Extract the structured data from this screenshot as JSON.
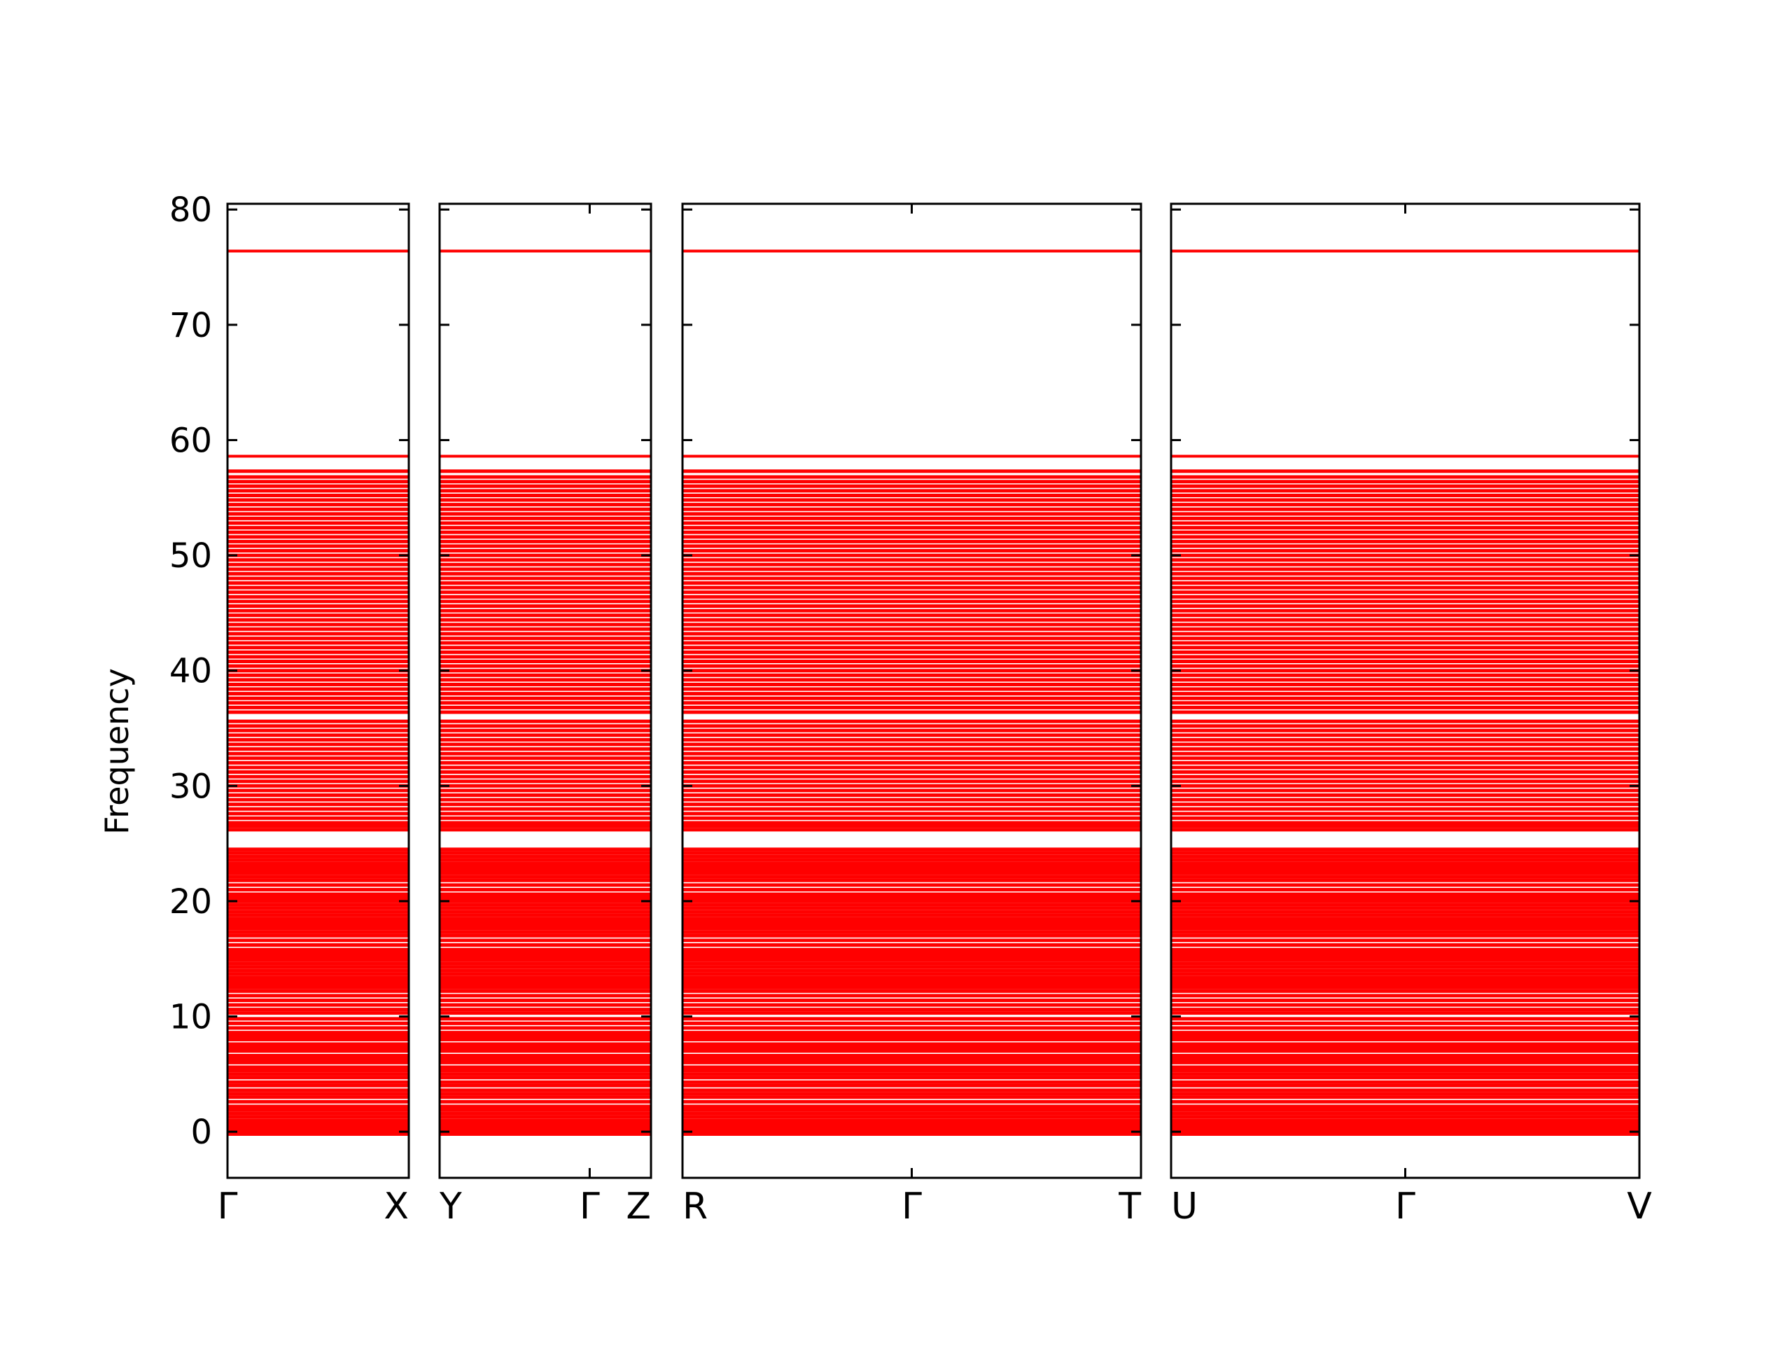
{
  "chart_data": {
    "type": "line",
    "title": "",
    "xlabel": "",
    "ylabel": "Frequency",
    "ylim": [
      -4,
      80.5
    ],
    "yticks": [
      0,
      10,
      20,
      30,
      40,
      50,
      60,
      70,
      80
    ],
    "line_color": "#ff0000",
    "axis_color": "#000000",
    "grid": false,
    "description_of_series": "Each band is flat (dispersionless) along every path segment",
    "segments": [
      {
        "start_label": "Γ",
        "end_label": "X",
        "mid_label": null
      },
      {
        "start_label": "Y",
        "end_label": "Z",
        "mid_label": "Γ"
      },
      {
        "start_label": "R",
        "end_label": "T",
        "mid_label": "Γ"
      },
      {
        "start_label": "U",
        "end_label": "V",
        "mid_label": "Γ"
      }
    ],
    "band_frequencies": [
      -0.2,
      0.0,
      0.2,
      0.4,
      0.6,
      0.8,
      1.0,
      1.3,
      1.6,
      1.9,
      2.2,
      2.6,
      3.0,
      3.3,
      3.6,
      4.0,
      4.3,
      4.7,
      5.0,
      5.3,
      5.6,
      6.0,
      6.3,
      6.6,
      7.0,
      7.3,
      7.6,
      8.0,
      8.3,
      8.6,
      9.0,
      9.4,
      9.8,
      10.3,
      10.6,
      11.0,
      11.4,
      11.8,
      12.2,
      12.5,
      12.8,
      13.1,
      13.4,
      13.7,
      14.0,
      14.3,
      14.6,
      14.9,
      15.2,
      15.5,
      15.8,
      16.2,
      16.6,
      17.0,
      17.3,
      17.6,
      17.9,
      18.2,
      18.5,
      18.8,
      19.1,
      19.4,
      19.7,
      20.0,
      20.3,
      20.6,
      21.0,
      21.4,
      21.8,
      22.1,
      22.4,
      22.7,
      23.0,
      23.3,
      23.6,
      23.9,
      24.2,
      24.5,
      26.2,
      26.5,
      26.8,
      27.2,
      27.6,
      28.0,
      28.4,
      28.8,
      29.2,
      29.6,
      30.0,
      30.4,
      30.8,
      31.2,
      31.6,
      32.0,
      32.4,
      32.8,
      33.2,
      33.6,
      34.0,
      34.4,
      34.8,
      35.2,
      35.6,
      36.4,
      36.8,
      37.2,
      37.6,
      38.0,
      38.4,
      38.8,
      39.2,
      39.6,
      40.0,
      40.4,
      40.8,
      41.2,
      41.6,
      42.0,
      42.4,
      42.8,
      43.2,
      43.6,
      44.0,
      44.4,
      44.8,
      45.2,
      45.6,
      46.0,
      46.4,
      46.8,
      47.2,
      47.6,
      48.0,
      48.4,
      48.8,
      49.2,
      49.6,
      50.0,
      50.4,
      50.8,
      51.2,
      51.6,
      52.0,
      52.4,
      52.8,
      53.2,
      53.6,
      54.0,
      54.4,
      54.8,
      55.2,
      55.6,
      56.0,
      56.4,
      56.8,
      57.3,
      58.6,
      76.4
    ]
  }
}
